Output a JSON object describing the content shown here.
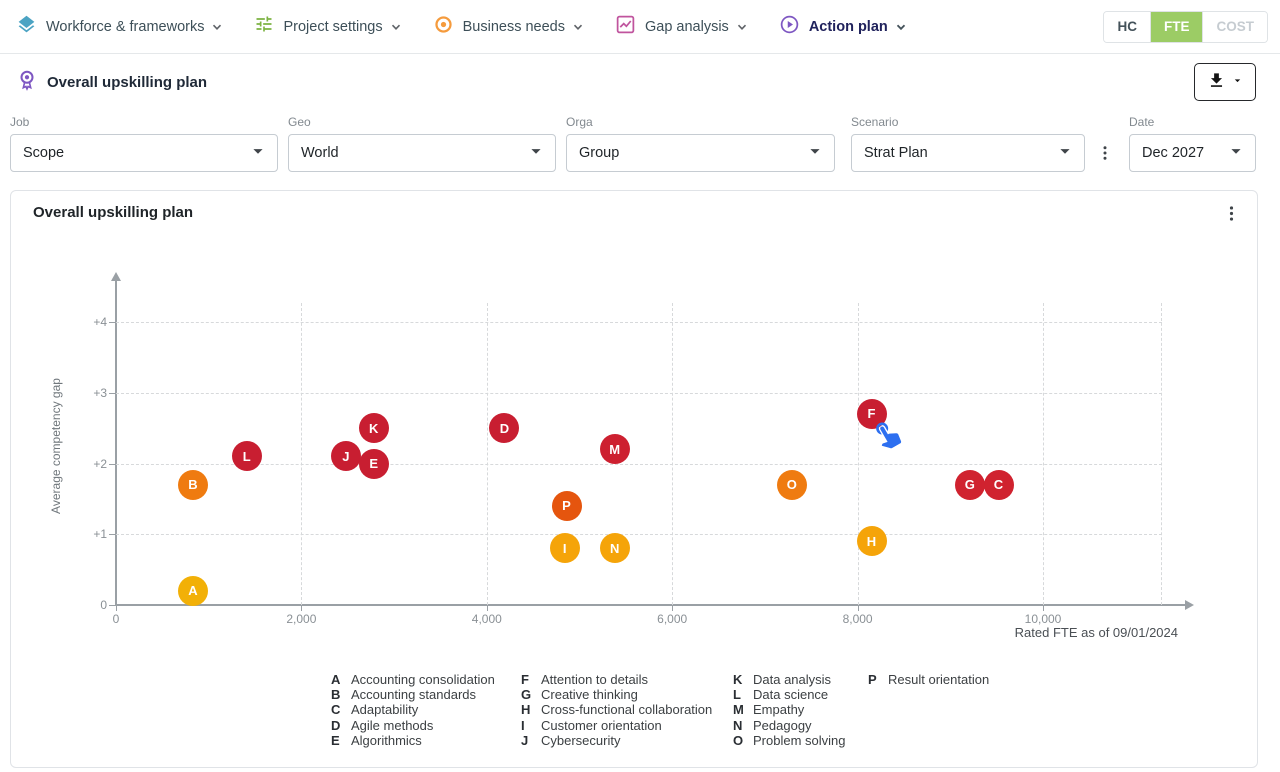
{
  "nav": {
    "items": [
      {
        "label": "Workforce & frameworks"
      },
      {
        "label": "Project settings"
      },
      {
        "label": "Business needs"
      },
      {
        "label": "Gap analysis"
      },
      {
        "label": "Action plan"
      }
    ],
    "toggles": [
      {
        "label": "HC"
      },
      {
        "label": "FTE"
      },
      {
        "label": "COST"
      }
    ]
  },
  "header": {
    "title": "Overall upskilling plan"
  },
  "filters": [
    {
      "label": "Job",
      "value": "Scope"
    },
    {
      "label": "Geo",
      "value": "World"
    },
    {
      "label": "Orga",
      "value": "Group"
    },
    {
      "label": "Scenario",
      "value": "Strat Plan"
    },
    {
      "label": "Date",
      "value": "Dec 2027"
    }
  ],
  "chart_card": {
    "title": "Overall upskilling plan"
  },
  "chart_data": {
    "type": "scatter",
    "title": "Overall upskilling plan",
    "xlabel": "Rated FTE as of 09/01/2024",
    "ylabel": "Average competency gap",
    "xlim": [
      0,
      11500
    ],
    "ylim": [
      0,
      4.6
    ],
    "grid": "dashed",
    "legend_position": "bottom",
    "x_ticks": [
      0,
      2000,
      4000,
      6000,
      8000,
      10000
    ],
    "x_tick_labels": [
      "0",
      "2,000",
      "4,000",
      "6,000",
      "8,000",
      "10,000"
    ],
    "y_ticks": [
      0,
      1,
      2,
      3,
      4
    ],
    "y_tick_labels": [
      "0",
      "+1",
      "+2",
      "+3",
      "+4"
    ],
    "points": [
      {
        "letter": "A",
        "label": "Accounting consolidation",
        "x": 830,
        "y": 0.2,
        "color": "#f2b007"
      },
      {
        "letter": "B",
        "label": "Accounting standards",
        "x": 830,
        "y": 1.7,
        "color": "#ef7b10"
      },
      {
        "letter": "C",
        "label": "Adaptability",
        "x": 9520,
        "y": 1.7,
        "color": "#d0222f"
      },
      {
        "letter": "D",
        "label": "Agile methods",
        "x": 4190,
        "y": 2.5,
        "color": "#c81e31"
      },
      {
        "letter": "E",
        "label": "Algorithmics",
        "x": 2780,
        "y": 2.0,
        "color": "#c81e31"
      },
      {
        "letter": "F",
        "label": "Attention to details",
        "x": 8150,
        "y": 2.7,
        "color": "#c81e31"
      },
      {
        "letter": "G",
        "label": "Creative thinking",
        "x": 9210,
        "y": 1.7,
        "color": "#d0222f"
      },
      {
        "letter": "H",
        "label": "Cross-functional collaboration",
        "x": 8150,
        "y": 0.9,
        "color": "#f5a409"
      },
      {
        "letter": "I",
        "label": "Customer orientation",
        "x": 4840,
        "y": 0.8,
        "color": "#f5a409"
      },
      {
        "letter": "J",
        "label": "Cybersecurity",
        "x": 2480,
        "y": 2.1,
        "color": "#c81e31"
      },
      {
        "letter": "K",
        "label": "Data analysis",
        "x": 2780,
        "y": 2.5,
        "color": "#c81e31"
      },
      {
        "letter": "L",
        "label": "Data science",
        "x": 1410,
        "y": 2.1,
        "color": "#c81e31"
      },
      {
        "letter": "M",
        "label": "Empathy",
        "x": 5380,
        "y": 2.2,
        "color": "#cd2030"
      },
      {
        "letter": "N",
        "label": "Pedagogy",
        "x": 5380,
        "y": 0.8,
        "color": "#f5a409"
      },
      {
        "letter": "O",
        "label": "Problem solving",
        "x": 7290,
        "y": 1.7,
        "color": "#ef7b10"
      },
      {
        "letter": "P",
        "label": "Result orientation",
        "x": 4860,
        "y": 1.4,
        "color": "#e5550e"
      }
    ]
  }
}
